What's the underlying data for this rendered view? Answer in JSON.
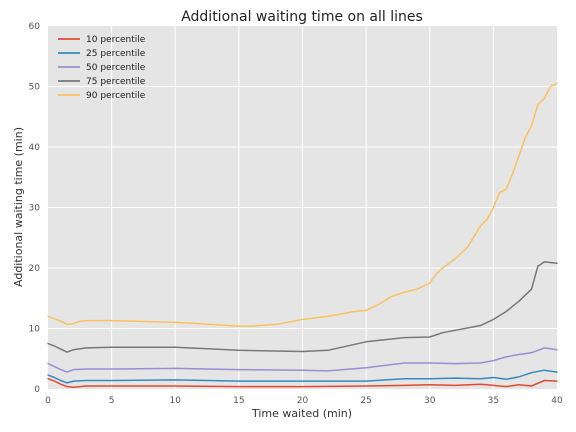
{
  "chart_data": {
    "type": "line",
    "title": "Additional waiting time on all lines",
    "xlabel": "Time waited (min)",
    "ylabel": "Additional waiting time (min)",
    "xlim": [
      0,
      40
    ],
    "ylim": [
      0,
      60
    ],
    "xticks": [
      "0",
      "5",
      "10",
      "15",
      "20",
      "25",
      "30",
      "35",
      "40"
    ],
    "yticks": [
      "0",
      "10",
      "20",
      "30",
      "40",
      "50",
      "60"
    ],
    "grid": true,
    "legend_position": "top-left",
    "background_color": "#e5e5e5",
    "series": [
      {
        "name": "10 percentile",
        "color": "#e24a33",
        "x": [
          0,
          0.5,
          1,
          1.5,
          2,
          3,
          5,
          10,
          15,
          20,
          25,
          28,
          30,
          32,
          34,
          35,
          36,
          37,
          38,
          39,
          40
        ],
        "y": [
          1.7,
          1.3,
          0.8,
          0.4,
          0.3,
          0.5,
          0.5,
          0.5,
          0.4,
          0.4,
          0.5,
          0.6,
          0.7,
          0.6,
          0.8,
          0.6,
          0.4,
          0.7,
          0.5,
          1.4,
          1.3
        ]
      },
      {
        "name": "25 percentile",
        "color": "#348abd",
        "x": [
          0,
          0.5,
          1,
          1.5,
          2,
          3,
          5,
          10,
          15,
          20,
          25,
          28,
          30,
          32,
          34,
          35,
          36,
          37,
          38,
          39,
          40
        ],
        "y": [
          2.3,
          1.9,
          1.4,
          1.0,
          1.3,
          1.4,
          1.4,
          1.5,
          1.3,
          1.3,
          1.3,
          1.7,
          1.7,
          1.8,
          1.7,
          1.9,
          1.6,
          2.0,
          2.7,
          3.1,
          2.8
        ]
      },
      {
        "name": "50 percentile",
        "color": "#988ed5",
        "x": [
          0,
          0.5,
          1,
          1.5,
          2,
          3,
          5,
          10,
          15,
          20,
          22,
          25,
          28,
          30,
          32,
          34,
          35,
          36,
          37,
          38,
          39,
          40
        ],
        "y": [
          4.2,
          3.7,
          3.2,
          2.8,
          3.2,
          3.3,
          3.3,
          3.4,
          3.2,
          3.1,
          3.0,
          3.5,
          4.3,
          4.3,
          4.2,
          4.3,
          4.7,
          5.3,
          5.7,
          6.0,
          6.8,
          6.5
        ]
      },
      {
        "name": "75 percentile",
        "color": "#777777",
        "x": [
          0,
          0.5,
          1,
          1.5,
          2,
          3,
          5,
          10,
          15,
          20,
          22,
          25,
          28,
          30,
          31,
          32,
          34,
          35,
          36,
          37,
          38,
          38.5,
          39,
          40
        ],
        "y": [
          7.5,
          7.1,
          6.6,
          6.1,
          6.5,
          6.8,
          6.9,
          6.9,
          6.4,
          6.2,
          6.4,
          7.8,
          8.5,
          8.6,
          9.3,
          9.7,
          10.5,
          11.5,
          12.8,
          14.5,
          16.5,
          20.3,
          21.0,
          20.8
        ]
      },
      {
        "name": "90 percentile",
        "color": "#fbc15e",
        "x": [
          0,
          0.5,
          1,
          1.5,
          2,
          2.5,
          3,
          5,
          7,
          10,
          12,
          15,
          16,
          18,
          20,
          22,
          24,
          25,
          26,
          27,
          28,
          29,
          30,
          30.5,
          31,
          32,
          33,
          34,
          34.5,
          35,
          35.5,
          36,
          36.5,
          37,
          37.5,
          38,
          38.5,
          39,
          39.5,
          40
        ],
        "y": [
          12.0,
          11.6,
          11.2,
          10.7,
          10.8,
          11.2,
          11.3,
          11.3,
          11.2,
          11.0,
          10.8,
          10.4,
          10.4,
          10.7,
          11.5,
          12.0,
          12.8,
          13.0,
          14.0,
          15.3,
          16.0,
          16.5,
          17.5,
          19.0,
          20.0,
          21.5,
          23.5,
          27.0,
          28.0,
          30.0,
          32.5,
          33.0,
          35.5,
          38.5,
          41.5,
          43.5,
          47.0,
          48.0,
          50.0,
          50.5
        ]
      }
    ]
  }
}
